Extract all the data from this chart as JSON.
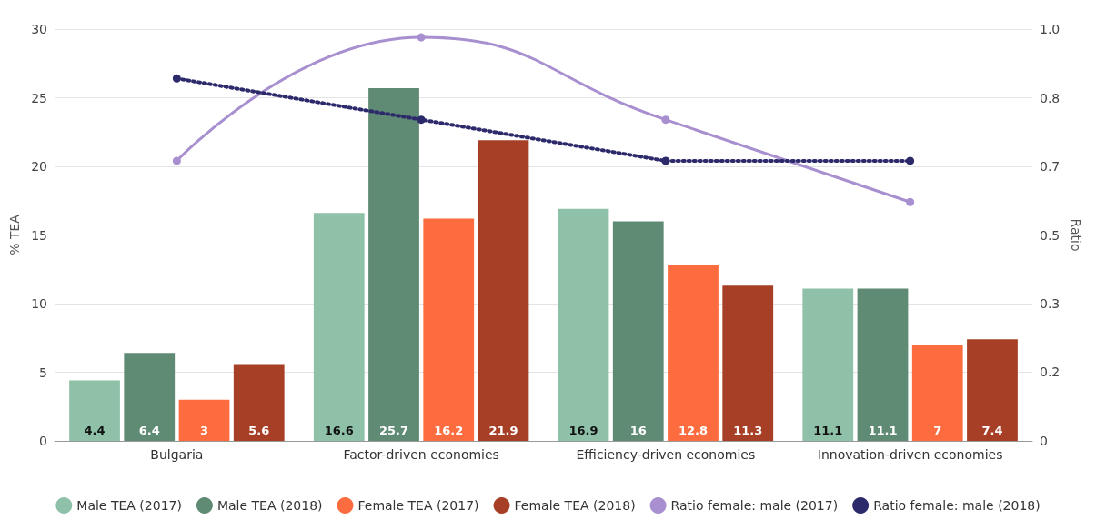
{
  "chart_data": {
    "type": "bar",
    "categories": [
      "Bulgaria",
      "Factor-driven economies",
      "Efficiency-driven economies",
      "Innovation-driven economies"
    ],
    "ylabel": "% TEA",
    "y2label": "Ratio",
    "ylim": [
      0,
      30
    ],
    "yticks": [
      0,
      5,
      10,
      15,
      20,
      25,
      30
    ],
    "y2lim": [
      0,
      1
    ],
    "y2ticks": [
      0,
      {
        "value": 0.1667,
        "label": "0.2"
      },
      {
        "value": 0.3333,
        "label": "0.3"
      },
      0.5,
      {
        "value": 0.6667,
        "label": "0.7"
      },
      {
        "value": 0.8333,
        "label": "0.8"
      },
      {
        "value": 1,
        "label": "1.0"
      }
    ],
    "grid": "y",
    "legend": "bottom",
    "marker": "circle",
    "series": [
      {
        "name": "Male TEA (2017)",
        "color": "#8fc1a9",
        "values": [
          4.4,
          16.6,
          16.9,
          11.1
        ],
        "value_labels": [
          "4.4",
          "16.6",
          "16.9",
          "11.1"
        ]
      },
      {
        "name": "Male TEA (2018)",
        "color": "#5f8a73",
        "values": [
          6.4,
          25.7,
          16,
          11.1
        ],
        "value_labels": [
          "6.4",
          "25.7",
          "16",
          "11.1"
        ]
      },
      {
        "name": "Female TEA (2017)",
        "color": "#fd6c3e",
        "values": [
          3,
          16.2,
          12.8,
          7
        ],
        "value_labels": [
          "3",
          "16.2",
          "12.8",
          "7"
        ]
      },
      {
        "name": "Female TEA (2018)",
        "color": "#a63f25",
        "values": [
          5.6,
          21.9,
          11.3,
          7.4
        ],
        "value_labels": [
          "5.6",
          "21.9",
          "11.3",
          "7.4"
        ]
      },
      {
        "name": "Ratio female: male (2017)",
        "type": "line",
        "axis": "y2",
        "line_style": "solid",
        "color": "#a88fd0",
        "values": [
          0.68,
          0.98,
          0.78,
          0.58
        ]
      },
      {
        "name": "Ratio female: male (2018)",
        "type": "line",
        "axis": "y2",
        "line_style": "dotted",
        "color": "#2c2a6b",
        "values": [
          0.88,
          0.78,
          0.68,
          0.68
        ]
      }
    ]
  }
}
